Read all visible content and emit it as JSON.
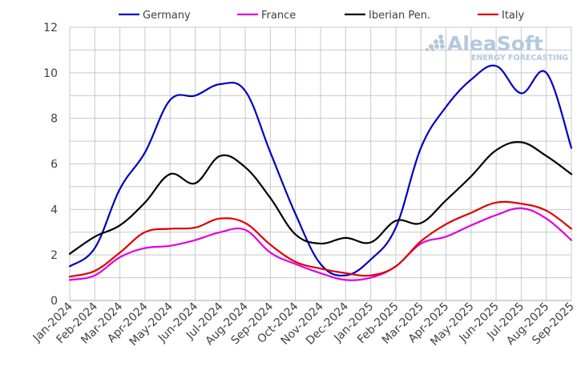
{
  "chart_data": {
    "type": "line",
    "title": "",
    "xlabel": "",
    "ylabel": "",
    "ylim": [
      0,
      12
    ],
    "yticks": [
      0,
      2,
      4,
      6,
      8,
      10,
      12
    ],
    "grid": true,
    "legend_position": "top",
    "categories": [
      "Jan-2024",
      "Feb-2024",
      "Mar-2024",
      "Apr-2024",
      "May-2024",
      "Jun-2024",
      "Jul-2024",
      "Aug-2024",
      "Sep-2024",
      "Oct-2024",
      "Nov-2024",
      "Dec-2024",
      "Jan-2025",
      "Feb-2025",
      "Mar-2025",
      "Apr-2025",
      "May-2025",
      "Jun-2025",
      "Jul-2025",
      "Aug-2025",
      "Sep-2025"
    ],
    "series": [
      {
        "name": "Germany",
        "color": "#0000c0",
        "values": [
          1.5,
          2.3,
          4.9,
          6.5,
          8.8,
          9.0,
          9.5,
          9.2,
          6.5,
          3.8,
          1.6,
          1.1,
          1.8,
          3.2,
          6.7,
          8.5,
          9.7,
          10.3,
          9.1,
          10.0,
          6.7
        ]
      },
      {
        "name": "France",
        "color": "#e000e0",
        "values": [
          0.9,
          1.1,
          1.9,
          2.3,
          2.4,
          2.65,
          3.0,
          3.1,
          2.1,
          1.6,
          1.2,
          0.9,
          1.0,
          1.5,
          2.5,
          2.8,
          3.3,
          3.75,
          4.05,
          3.6,
          2.65
        ]
      },
      {
        "name": "Iberian Pen.",
        "color": "#000000",
        "values": [
          2.05,
          2.8,
          3.3,
          4.3,
          5.55,
          5.15,
          6.35,
          5.85,
          4.5,
          2.9,
          2.5,
          2.75,
          2.55,
          3.5,
          3.4,
          4.4,
          5.45,
          6.6,
          6.95,
          6.35,
          5.55
        ]
      },
      {
        "name": "Italy",
        "color": "#e00000",
        "values": [
          1.05,
          1.3,
          2.1,
          3.0,
          3.15,
          3.2,
          3.6,
          3.4,
          2.45,
          1.7,
          1.4,
          1.2,
          1.1,
          1.5,
          2.6,
          3.35,
          3.85,
          4.3,
          4.25,
          3.95,
          3.15
        ]
      }
    ]
  },
  "watermark": {
    "brand": "AleaSoft",
    "tagline": "ENERGY FORECASTING"
  }
}
